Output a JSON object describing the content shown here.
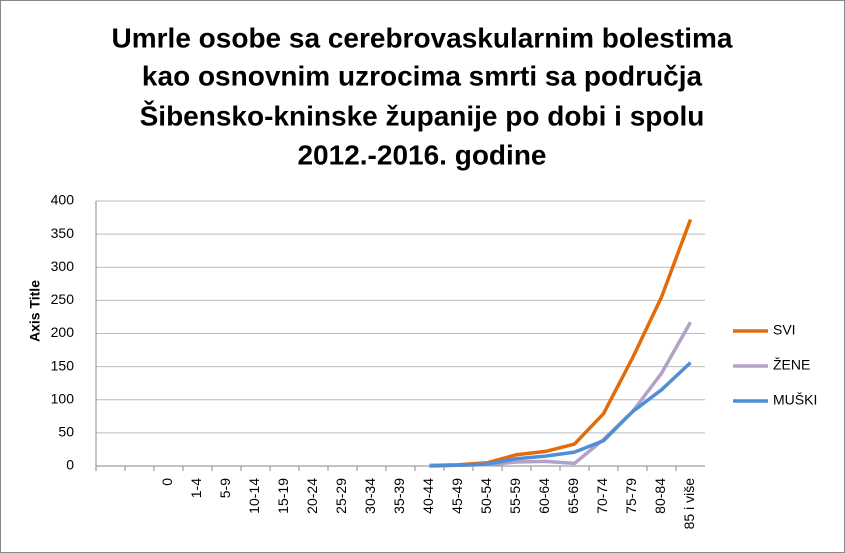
{
  "chart_data": {
    "type": "line",
    "title_lines": [
      "Umrle osobe sa cerebrovaskularnim bolestima",
      "kao osnovnim uzrocima smrti sa područja",
      "Šibensko-kninske županije po dobi i spolu",
      "2012.-2016. godine"
    ],
    "y_label": "Axis Title",
    "categories": [
      null,
      null,
      "0",
      "1-4",
      "5-9",
      "10-14",
      "15-19",
      "20-24",
      "25-29",
      "30-34",
      "35-39",
      "40-44",
      "45-49",
      "50-54",
      "55-59",
      "60-64",
      "65-69",
      "70-74",
      "75-79",
      "80-84",
      "85 i više"
    ],
    "series": [
      {
        "name": "SVI",
        "color": "#e36c0a",
        "values": [
          null,
          null,
          null,
          null,
          null,
          null,
          null,
          null,
          null,
          null,
          null,
          1,
          2,
          5,
          17,
          22,
          33,
          79,
          163,
          255,
          372
        ]
      },
      {
        "name": "ŽENE",
        "color": "#b3a2c7",
        "values": [
          null,
          null,
          null,
          null,
          null,
          null,
          null,
          null,
          null,
          null,
          null,
          1,
          1,
          2,
          6,
          7,
          4,
          40,
          82,
          140,
          217
        ]
      },
      {
        "name": "MUŠKI",
        "color": "#4f8fd6",
        "values": [
          null,
          null,
          null,
          null,
          null,
          null,
          null,
          null,
          null,
          null,
          null,
          0,
          1,
          3,
          11,
          15,
          21,
          38,
          82,
          115,
          156
        ]
      }
    ],
    "ylim": [
      0,
      400
    ],
    "yticks": [
      0,
      50,
      100,
      150,
      200,
      250,
      300,
      350,
      400
    ],
    "grid": true,
    "legend": "right"
  }
}
